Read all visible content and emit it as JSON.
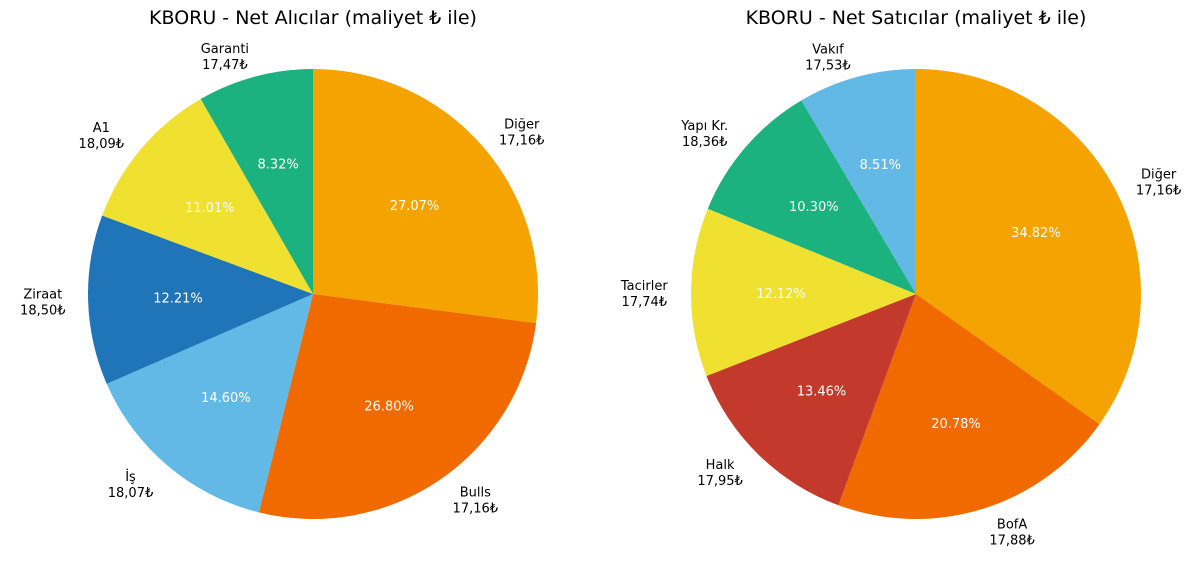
{
  "chart_data": [
    {
      "type": "pie",
      "title": "KBORU - Net Alıcılar (maliyet ₺ ile)",
      "slices": [
        {
          "name": "Diğer",
          "cost": "17,16₺",
          "value": 27.07,
          "pct_label": "27.07%",
          "color": "#f4a300"
        },
        {
          "name": "Bulls",
          "cost": "17,16₺",
          "value": 26.8,
          "pct_label": "26.80%",
          "color": "#f06a00"
        },
        {
          "name": "İş",
          "cost": "18,07₺",
          "value": 14.6,
          "pct_label": "14.60%",
          "color": "#63b9e6"
        },
        {
          "name": "Ziraat",
          "cost": "18,50₺",
          "value": 12.21,
          "pct_label": "12.21%",
          "color": "#1f75b8"
        },
        {
          "name": "A1",
          "cost": "18,09₺",
          "value": 11.01,
          "pct_label": "11.01%",
          "color": "#f0e130"
        },
        {
          "name": "Garanti",
          "cost": "17,47₺",
          "value": 8.32,
          "pct_label": "8.32%",
          "color": "#1bb280"
        }
      ]
    },
    {
      "type": "pie",
      "title": "KBORU - Net Satıcılar (maliyet ₺ ile)",
      "slices": [
        {
          "name": "Diğer",
          "cost": "17,16₺",
          "value": 34.82,
          "pct_label": "34.82%",
          "color": "#f4a300"
        },
        {
          "name": "BofA",
          "cost": "17,88₺",
          "value": 20.78,
          "pct_label": "20.78%",
          "color": "#f06a00"
        },
        {
          "name": "Halk",
          "cost": "17,95₺",
          "value": 13.46,
          "pct_label": "13.46%",
          "color": "#c33a2c"
        },
        {
          "name": "Tacirler",
          "cost": "17,74₺",
          "value": 12.12,
          "pct_label": "12.12%",
          "color": "#f0e130"
        },
        {
          "name": "Yapı Kr.",
          "cost": "18,36₺",
          "value": 10.3,
          "pct_label": "10.30%",
          "color": "#1bb280"
        },
        {
          "name": "Vakıf",
          "cost": "17,53₺",
          "value": 8.51,
          "pct_label": "8.51%",
          "color": "#63b9e6"
        }
      ]
    }
  ]
}
